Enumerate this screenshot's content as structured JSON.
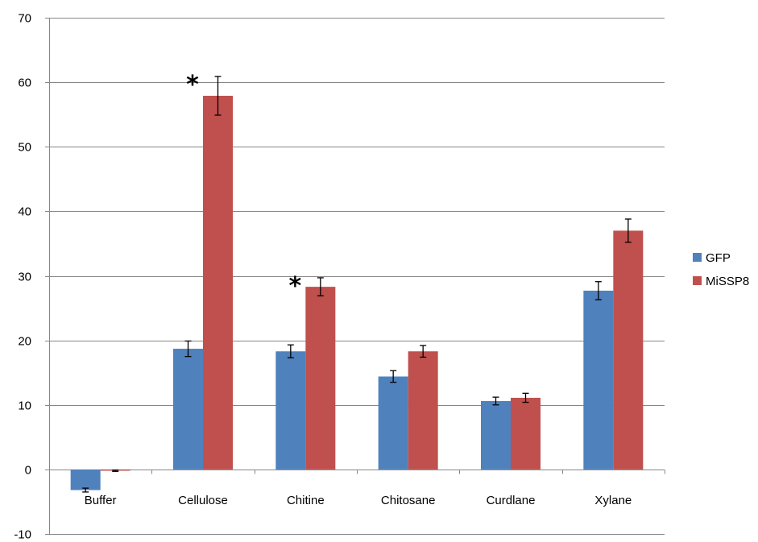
{
  "chart_data": {
    "type": "bar",
    "categories": [
      "Buffer",
      "Cellulose",
      "Chitine",
      "Chitosane",
      "Curdlane",
      "Xylane"
    ],
    "series": [
      {
        "name": "GFP",
        "color": "#4F81BD",
        "values": [
          -3.2,
          18.7,
          18.3,
          14.4,
          10.6,
          27.7
        ],
        "errors": [
          0.3,
          1.2,
          1.0,
          0.9,
          0.6,
          1.4
        ]
      },
      {
        "name": "MiSSP8",
        "color": "#C0504D",
        "values": [
          -0.2,
          57.9,
          28.3,
          18.3,
          11.1,
          37.0
        ],
        "errors": [
          0.1,
          3.0,
          1.4,
          0.9,
          0.7,
          1.8
        ]
      }
    ],
    "ylim": [
      -10,
      70
    ],
    "yticks": [
      "-10",
      "0",
      "10",
      "20",
      "30",
      "40",
      "50",
      "60",
      "70"
    ],
    "grid": true,
    "legend_position": "right",
    "annotations": [
      {
        "text": "*",
        "category": "Cellulose",
        "series": "MiSSP8"
      },
      {
        "text": "*",
        "category": "Chitine",
        "series": "MiSSP8"
      }
    ],
    "title": "",
    "xlabel": "",
    "ylabel": ""
  }
}
